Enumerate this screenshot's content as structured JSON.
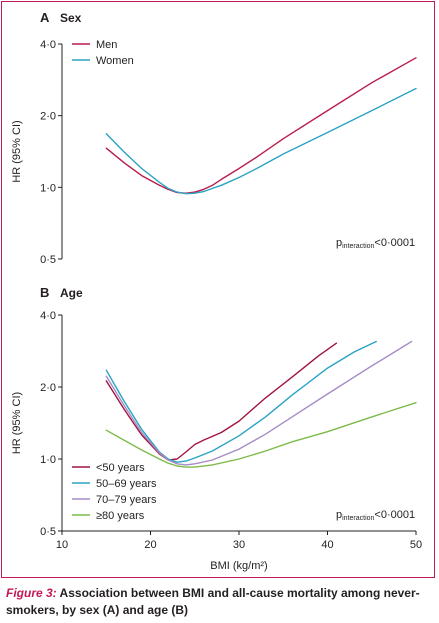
{
  "caption": {
    "label": "Figure 3:",
    "text": " Association between BMI and all-cause mortality among never-smokers, by sex (A) and age (B)"
  },
  "colors": {
    "frame": "#c4195a",
    "caption_label": "#c4195a",
    "men": "#b81d4c",
    "women": "#2aa3c4",
    "under50": "#a0153e",
    "age50_69": "#2aa3c4",
    "age70_79": "#a58cc6",
    "age80plus": "#7dbb4a"
  },
  "chart_data": [
    {
      "type": "line",
      "panel": "A",
      "title": "Sex",
      "ylabel": "HR (95% CI)",
      "xlabel": "",
      "yscale": "log",
      "ylim": [
        0.5,
        4.0
      ],
      "yticks": [
        "0·5",
        "1·0",
        "2·0",
        "4·0"
      ],
      "ytick_values": [
        0.5,
        1.0,
        2.0,
        4.0
      ],
      "xlim": [
        10,
        50
      ],
      "legend_position": "top-left",
      "annotation": {
        "main": "p",
        "sub": "interaction",
        "rest": "<0·0001"
      },
      "series": [
        {
          "name": "Men",
          "color": "#b81d4c",
          "points": [
            [
              15,
              1.46
            ],
            [
              17,
              1.27
            ],
            [
              19,
              1.12
            ],
            [
              21,
              1.02
            ],
            [
              22,
              0.98
            ],
            [
              23,
              0.95
            ],
            [
              24,
              0.945
            ],
            [
              25,
              0.955
            ],
            [
              26,
              0.98
            ],
            [
              27,
              1.02
            ],
            [
              28,
              1.08
            ],
            [
              30,
              1.2
            ],
            [
              32,
              1.34
            ],
            [
              35,
              1.6
            ],
            [
              40,
              2.1
            ],
            [
              45,
              2.75
            ],
            [
              50,
              3.5
            ]
          ]
        },
        {
          "name": "Women",
          "color": "#2aa3c4",
          "points": [
            [
              15,
              1.68
            ],
            [
              17,
              1.41
            ],
            [
              19,
              1.2
            ],
            [
              21,
              1.05
            ],
            [
              22,
              0.99
            ],
            [
              23,
              0.955
            ],
            [
              24,
              0.94
            ],
            [
              25,
              0.945
            ],
            [
              26,
              0.96
            ],
            [
              27,
              0.99
            ],
            [
              28,
              1.02
            ],
            [
              30,
              1.1
            ],
            [
              32,
              1.2
            ],
            [
              35,
              1.38
            ],
            [
              40,
              1.7
            ],
            [
              45,
              2.1
            ],
            [
              50,
              2.6
            ]
          ]
        }
      ]
    },
    {
      "type": "line",
      "panel": "B",
      "title": "Age",
      "ylabel": "HR (95% CI)",
      "xlabel": "BMI (kg/m²)",
      "yscale": "log",
      "ylim": [
        0.5,
        4.0
      ],
      "yticks": [
        "0·5",
        "1·0",
        "2·0",
        "4·0"
      ],
      "ytick_values": [
        0.5,
        1.0,
        2.0,
        4.0
      ],
      "xlim": [
        10,
        50
      ],
      "xticks": [
        "10",
        "20",
        "30",
        "40",
        "50"
      ],
      "xtick_values": [
        10,
        20,
        30,
        40,
        50
      ],
      "legend_position": "bottom-left",
      "annotation": {
        "main": "p",
        "sub": "interaction",
        "rest": "<0·0001"
      },
      "series": [
        {
          "name": "<50 years",
          "color": "#a0153e",
          "points": [
            [
              15,
              2.12
            ],
            [
              17,
              1.62
            ],
            [
              19,
              1.26
            ],
            [
              21,
              1.05
            ],
            [
              22,
              0.99
            ],
            [
              23,
              1.0
            ],
            [
              24,
              1.07
            ],
            [
              25,
              1.15
            ],
            [
              26,
              1.2
            ],
            [
              28,
              1.29
            ],
            [
              30,
              1.44
            ],
            [
              33,
              1.8
            ],
            [
              36,
              2.2
            ],
            [
              39,
              2.7
            ],
            [
              41,
              3.05
            ]
          ]
        },
        {
          "name": "50–69 years",
          "color": "#2aa3c4",
          "points": [
            [
              15,
              2.35
            ],
            [
              17,
              1.75
            ],
            [
              19,
              1.33
            ],
            [
              21,
              1.07
            ],
            [
              22,
              1.0
            ],
            [
              23,
              0.97
            ],
            [
              24,
              0.98
            ],
            [
              25,
              1.01
            ],
            [
              27,
              1.08
            ],
            [
              30,
              1.25
            ],
            [
              33,
              1.5
            ],
            [
              36,
              1.85
            ],
            [
              40,
              2.4
            ],
            [
              43,
              2.8
            ],
            [
              45.5,
              3.1
            ]
          ]
        },
        {
          "name": "70–79 years",
          "color": "#a58cc6",
          "points": [
            [
              15,
              2.22
            ],
            [
              17,
              1.68
            ],
            [
              19,
              1.29
            ],
            [
              21,
              1.06
            ],
            [
              22,
              0.99
            ],
            [
              23,
              0.955
            ],
            [
              24,
              0.945
            ],
            [
              25,
              0.955
            ],
            [
              27,
              0.99
            ],
            [
              30,
              1.1
            ],
            [
              33,
              1.27
            ],
            [
              36,
              1.5
            ],
            [
              40,
              1.87
            ],
            [
              45,
              2.45
            ],
            [
              49.5,
              3.1
            ]
          ]
        },
        {
          "name": "≥80 years",
          "color": "#7dbb4a",
          "points": [
            [
              15,
              1.32
            ],
            [
              17,
              1.2
            ],
            [
              19,
              1.09
            ],
            [
              21,
              1.0
            ],
            [
              22,
              0.96
            ],
            [
              23,
              0.935
            ],
            [
              24,
              0.925
            ],
            [
              25,
              0.925
            ],
            [
              27,
              0.945
            ],
            [
              30,
              1.0
            ],
            [
              33,
              1.08
            ],
            [
              36,
              1.18
            ],
            [
              40,
              1.3
            ],
            [
              45,
              1.5
            ],
            [
              50,
              1.72
            ]
          ]
        }
      ]
    }
  ]
}
